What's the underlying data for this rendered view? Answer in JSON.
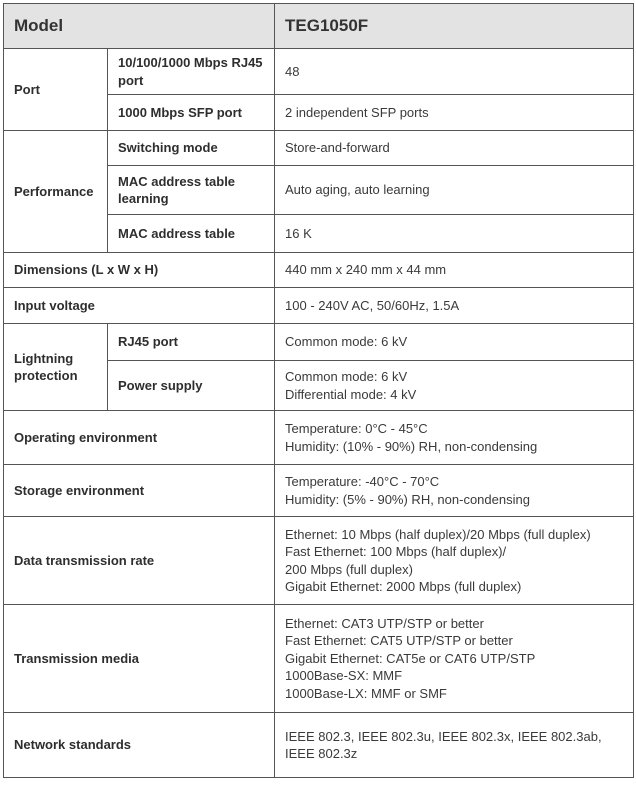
{
  "header": {
    "label": "Model",
    "value": "TEG1050F"
  },
  "port": {
    "label": "Port",
    "rows": [
      {
        "label": "10/100/1000 Mbps RJ45 port",
        "value": "48"
      },
      {
        "label": "1000 Mbps SFP port",
        "value": "2 independent SFP ports"
      }
    ]
  },
  "performance": {
    "label": "Performance",
    "rows": [
      {
        "label": "Switching mode",
        "value": "Store-and-forward"
      },
      {
        "label": "MAC address table learning",
        "value": "Auto aging, auto learning"
      },
      {
        "label": "MAC address table",
        "value": "16 K"
      }
    ]
  },
  "dimensions": {
    "label": "Dimensions (L x W x H)",
    "value": "440 mm x 240 mm x 44 mm"
  },
  "input_voltage": {
    "label": "Input voltage",
    "value": "100 - 240V AC, 50/60Hz, 1.5A"
  },
  "lightning": {
    "label": "Lightning protection",
    "rows": [
      {
        "label": "RJ45 port",
        "value": "Common mode: 6 kV"
      },
      {
        "label": "Power supply",
        "value": "Common mode: 6 kV\nDifferential mode: 4 kV"
      }
    ]
  },
  "operating": {
    "label": "Operating environment",
    "value": "Temperature: 0°C - 45°C\nHumidity: (10% - 90%) RH, non-condensing"
  },
  "storage": {
    "label": "Storage environment",
    "value": "Temperature: -40°C - 70°C\nHumidity: (5% - 90%) RH, non-condensing"
  },
  "data_rate": {
    "label": "Data transmission rate",
    "value": "Ethernet: 10 Mbps (half duplex)/20 Mbps (full duplex)\nFast Ethernet: 100 Mbps (half duplex)/\n200 Mbps (full duplex)\nGigabit Ethernet: 2000 Mbps (full duplex)"
  },
  "media": {
    "label": "Transmission media",
    "value": "Ethernet: CAT3 UTP/STP or better\nFast Ethernet: CAT5 UTP/STP or better\nGigabit Ethernet: CAT5e or CAT6 UTP/STP\n1000Base-SX: MMF\n1000Base-LX: MMF or SMF"
  },
  "standards": {
    "label": "Network standards",
    "value": "IEEE 802.3, IEEE 802.3u, IEEE 802.3x, IEEE 802.3ab,\nIEEE 802.3z"
  }
}
